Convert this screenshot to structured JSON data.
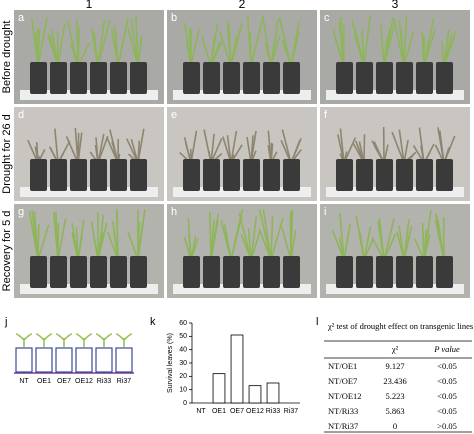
{
  "column_headers": [
    "1",
    "2",
    "3"
  ],
  "row_labels": [
    "Before drought",
    "Drought for 26 d",
    "Recovery for 5 d"
  ],
  "photo_labels": [
    "a",
    "b",
    "c",
    "d",
    "e",
    "f",
    "g",
    "h",
    "i"
  ],
  "diagram": {
    "label": "j",
    "labels": [
      "NT",
      "OE1",
      "OE7",
      "OE12",
      "Ri33",
      "Ri37"
    ]
  },
  "chart_data": {
    "type": "bar",
    "label": "k",
    "ylabel": "Survival leaves (%)",
    "categories": [
      "NT",
      "OE1",
      "OE7",
      "OE12",
      "Ri33",
      "Ri37"
    ],
    "values": [
      0,
      22,
      51,
      13,
      15,
      0
    ],
    "color": "#ffffff",
    "ylim": [
      0,
      60
    ],
    "yticks": [
      0,
      10,
      20,
      30,
      40,
      50,
      60
    ]
  },
  "table": {
    "label": "l",
    "title": "χ² test of drought effect on transgenic lines",
    "header": [
      "χ²",
      "P value"
    ],
    "rows": [
      [
        "NT/OE1",
        "9.127",
        "<0.05"
      ],
      [
        "NT/OE7",
        "23.436",
        "<0.05"
      ],
      [
        "NT/OE12",
        "5.223",
        "<0.05"
      ],
      [
        "NT/Ri33",
        "5.863",
        "<0.05"
      ],
      [
        "NT/Ri37",
        "0",
        ">0.05"
      ]
    ]
  }
}
